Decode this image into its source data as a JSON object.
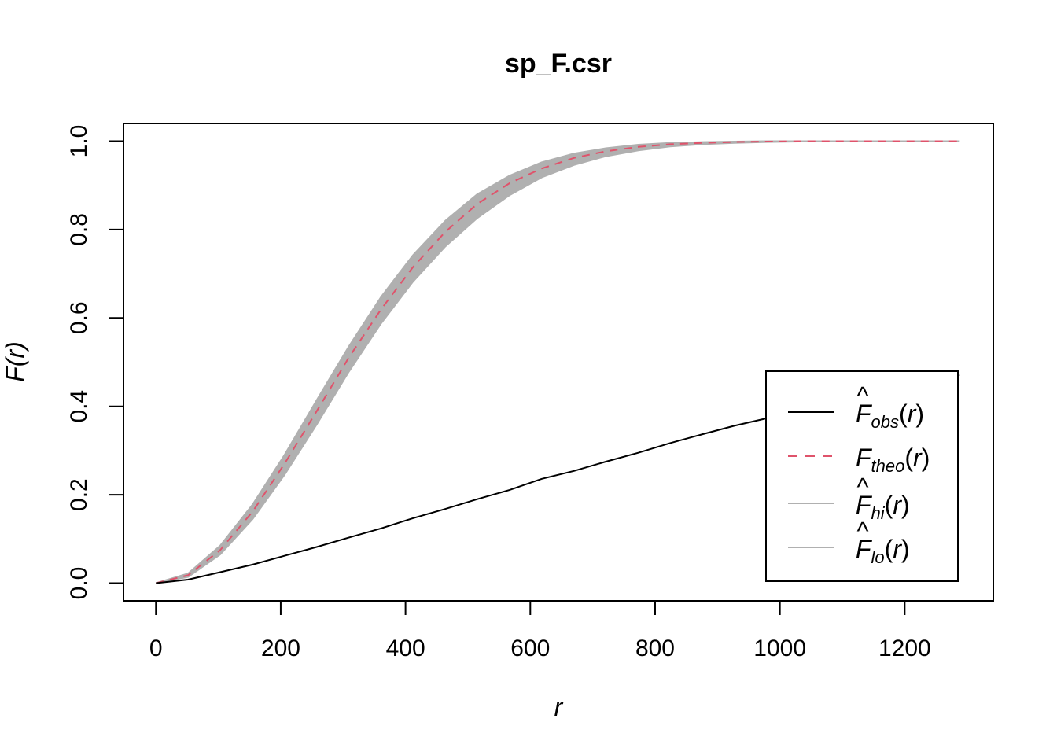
{
  "chart_data": {
    "type": "line",
    "title": "sp_F.csr",
    "xlabel": "r",
    "ylabel": "F(r)",
    "xlim": [
      -52,
      1342
    ],
    "ylim": [
      -0.04,
      1.04
    ],
    "xticks": [
      0,
      200,
      400,
      600,
      800,
      1000,
      1200
    ],
    "xtick_labels": [
      "0",
      "200",
      "400",
      "600",
      "800",
      "1000",
      "1200"
    ],
    "yticks": [
      0.0,
      0.2,
      0.4,
      0.6,
      0.8,
      1.0
    ],
    "ytick_labels": [
      "0.0",
      "0.2",
      "0.4",
      "0.6",
      "0.8",
      "1.0"
    ],
    "grid": false,
    "legend_position": "bottom-right",
    "x": [
      0,
      51.5,
      103,
      155,
      206,
      258,
      309,
      361,
      412,
      464,
      515,
      567,
      618,
      670,
      721,
      773,
      824,
      876,
      927,
      979,
      1030,
      1082,
      1133,
      1185,
      1236,
      1288
    ],
    "series": [
      {
        "name": "obs",
        "legend_label": "F̂obs(r)",
        "style": "solid",
        "color": "#000000",
        "values": [
          0,
          0.008,
          0.025,
          0.042,
          0.062,
          0.082,
          0.103,
          0.124,
          0.147,
          0.168,
          0.19,
          0.211,
          0.236,
          0.254,
          0.275,
          0.295,
          0.317,
          0.337,
          0.356,
          0.373,
          0.392,
          0.41,
          0.428,
          0.444,
          0.458,
          0.471
        ]
      },
      {
        "name": "theo",
        "legend_label": "Ftheo(r)",
        "style": "dashed",
        "color": "#DF536B",
        "values": [
          0,
          0.018,
          0.075,
          0.162,
          0.27,
          0.39,
          0.51,
          0.62,
          0.715,
          0.795,
          0.858,
          0.905,
          0.938,
          0.962,
          0.977,
          0.987,
          0.993,
          0.996,
          0.998,
          0.999,
          1.0,
          1.0,
          1.0,
          1.0,
          1.0,
          1.0
        ]
      },
      {
        "name": "hi",
        "legend_label": "F̂hi(r)",
        "style": "solid",
        "color": "#B0B0B0",
        "values": [
          0,
          0.022,
          0.085,
          0.178,
          0.29,
          0.415,
          0.535,
          0.648,
          0.742,
          0.82,
          0.88,
          0.922,
          0.952,
          0.972,
          0.984,
          0.992,
          0.996,
          0.998,
          0.999,
          1.0,
          1.0,
          1.0,
          1.0,
          1.0,
          1.0,
          1.0
        ]
      },
      {
        "name": "lo",
        "legend_label": "F̂lo(r)",
        "style": "solid",
        "color": "#B0B0B0",
        "values": [
          0,
          0.014,
          0.065,
          0.145,
          0.245,
          0.36,
          0.478,
          0.588,
          0.682,
          0.762,
          0.826,
          0.878,
          0.918,
          0.946,
          0.966,
          0.979,
          0.988,
          0.993,
          0.996,
          0.998,
          0.999,
          1.0,
          1.0,
          1.0,
          1.0,
          1.0
        ]
      }
    ],
    "envelope_fill_color": "#B0B0B0"
  }
}
